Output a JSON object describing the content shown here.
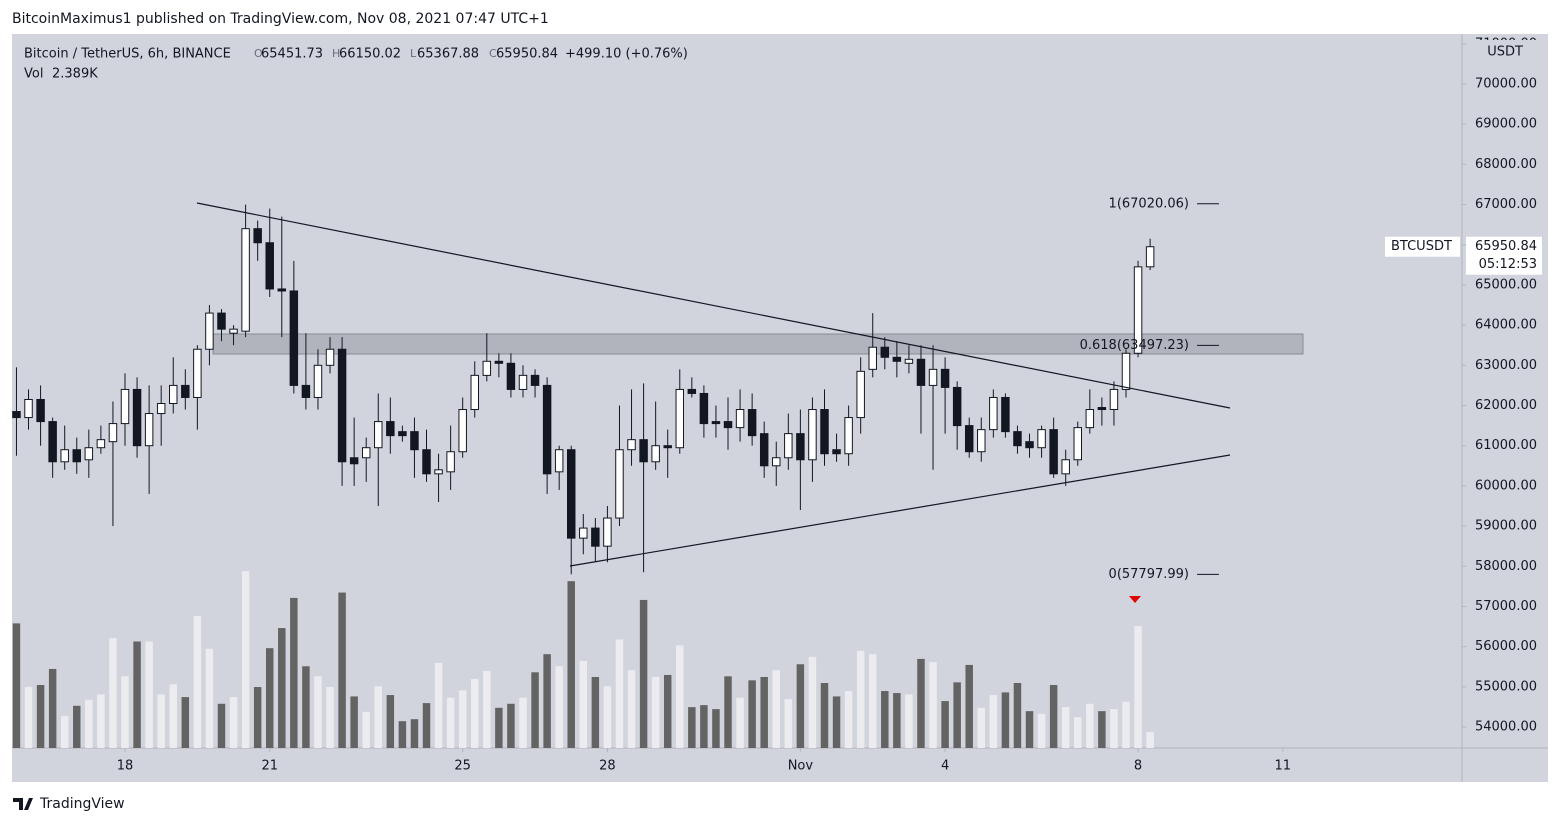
{
  "header": {
    "publisher_line": "BitcoinMaximus1 published on TradingView.com, Nov 08, 2021 07:47 UTC+1"
  },
  "chart_data": {
    "type": "candlestick",
    "symbol": "Bitcoin / TetherUS, 6h, BINANCE",
    "ohlc_letters": [
      "O",
      "H",
      "L",
      "C"
    ],
    "change": "+499.10 (+0.76%)",
    "ticker": "BTCUSDT",
    "countdown": "05:12:53",
    "axis_unit": "USDT",
    "up_color": "#ffffff",
    "down_color": "#131722",
    "open": [
      61850,
      61700,
      62150,
      61600,
      60600,
      60900,
      60650,
      60950,
      61100,
      61550,
      62400,
      61000,
      61800,
      62050,
      62500,
      62200,
      63400,
      64300,
      63800,
      63850,
      66400,
      66050,
      64900,
      64850,
      62500,
      62200,
      63000,
      63400,
      60700,
      60700,
      60950,
      61600,
      61350,
      61350,
      60900,
      60300,
      60350,
      60850,
      61900,
      62750,
      63100,
      63050,
      62400,
      62750,
      62500,
      60350,
      60900,
      58700,
      58950,
      58500,
      59200,
      60900,
      61150,
      60600,
      61000,
      60950,
      62400,
      62300,
      61600,
      61600,
      61450,
      61900,
      61300,
      60500,
      60700,
      61300,
      60650,
      61900,
      60900,
      60800,
      61700,
      62900,
      63450,
      63200,
      63050,
      63150,
      62500,
      62900,
      62450,
      61500,
      60850,
      61400,
      62200,
      61350,
      61100,
      60950,
      61400,
      60300,
      60650,
      61450,
      61950,
      61900,
      62400,
      63300,
      65451.73
    ],
    "high": [
      62950,
      62400,
      62500,
      61700,
      61500,
      61200,
      61400,
      61500,
      62100,
      62800,
      62700,
      62500,
      62500,
      63200,
      62900,
      63500,
      64500,
      64400,
      64000,
      67000,
      66600,
      66900,
      66700,
      65600,
      63800,
      63400,
      63700,
      63700,
      61700,
      61200,
      62300,
      62200,
      61500,
      61700,
      61400,
      60800,
      61500,
      62200,
      63100,
      63800,
      63300,
      63300,
      63000,
      62900,
      62700,
      61000,
      61000,
      59300,
      59200,
      59500,
      62000,
      62400,
      62550,
      62100,
      61400,
      62900,
      62700,
      62500,
      62000,
      62200,
      62400,
      62300,
      61600,
      61100,
      61800,
      61900,
      62200,
      62400,
      61300,
      62000,
      63200,
      64300,
      63700,
      63600,
      63500,
      63500,
      63500,
      63200,
      62600,
      61700,
      61700,
      62400,
      62300,
      61500,
      61300,
      61500,
      61700,
      60900,
      61600,
      62400,
      62200,
      62600,
      63400,
      65600,
      66150.02
    ],
    "low": [
      60750,
      61400,
      61000,
      60200,
      60400,
      60300,
      60200,
      60800,
      59000,
      61000,
      60700,
      59800,
      61000,
      61800,
      61900,
      61400,
      63000,
      63600,
      63500,
      63700,
      65600,
      64700,
      63700,
      62300,
      61900,
      61900,
      62800,
      60000,
      60000,
      60100,
      59500,
      60800,
      61100,
      60200,
      60100,
      59600,
      59900,
      60700,
      61700,
      62600,
      62700,
      62200,
      62200,
      62200,
      59800,
      59900,
      57800,
      58300,
      58100,
      58100,
      59000,
      60500,
      57850,
      60400,
      60200,
      60800,
      62200,
      61200,
      61200,
      60900,
      61100,
      61000,
      60200,
      60000,
      60400,
      59400,
      60100,
      60500,
      60600,
      60500,
      61300,
      62700,
      62900,
      62700,
      62800,
      61300,
      60400,
      61300,
      60900,
      60700,
      60600,
      61200,
      61200,
      60800,
      60700,
      60700,
      60200,
      60000,
      60500,
      61300,
      61500,
      61500,
      62200,
      63200,
      65367.88
    ],
    "close": [
      61700,
      62150,
      61600,
      60600,
      60900,
      60600,
      60950,
      61150,
      61550,
      62400,
      61000,
      61800,
      62050,
      62500,
      62200,
      63400,
      64300,
      63900,
      63900,
      66400,
      66050,
      64900,
      64850,
      62500,
      62200,
      63000,
      63400,
      60600,
      60550,
      60950,
      61600,
      61250,
      61250,
      60900,
      60300,
      60400,
      60850,
      61900,
      62750,
      63100,
      63050,
      62400,
      62750,
      62500,
      60300,
      60900,
      58700,
      58950,
      58500,
      59200,
      60900,
      61150,
      60600,
      61000,
      60950,
      62400,
      62300,
      61550,
      61550,
      61450,
      61900,
      61250,
      60500,
      60700,
      61300,
      60650,
      61900,
      60800,
      60800,
      61700,
      62850,
      63450,
      63200,
      63100,
      63150,
      62500,
      62900,
      62450,
      61500,
      60850,
      61400,
      62200,
      61350,
      61000,
      60950,
      61400,
      60300,
      60650,
      61450,
      61900,
      61900,
      62400,
      63300,
      65450,
      65950.84
    ],
    "volume": {
      "name": "Vol",
      "current_label": "2.389K",
      "up_color": "#ececf0",
      "down_color": "#636363",
      "values": [
        18.6,
        9.1,
        9.4,
        11.8,
        4.8,
        6.3,
        7.2,
        8.0,
        16.4,
        10.7,
        15.9,
        15.9,
        8.0,
        9.5,
        7.6,
        19.7,
        14.8,
        6.6,
        7.6,
        26.4,
        9.1,
        14.9,
        17.9,
        22.4,
        12.2,
        10.7,
        9.1,
        23.2,
        7.7,
        5.4,
        9.2,
        7.9,
        4.0,
        4.3,
        6.7,
        12.7,
        7.5,
        8.6,
        10.3,
        11.5,
        6.0,
        6.6,
        7.5,
        11.3,
        14.0,
        12.2,
        24.9,
        13.0,
        10.6,
        9.2,
        16.2,
        11.6,
        22.1,
        10.6,
        10.9,
        15.3,
        6.1,
        6.4,
        5.8,
        10.7,
        7.5,
        10.1,
        10.6,
        11.6,
        7.3,
        12.5,
        13.6,
        9.7,
        7.7,
        8.5,
        14.5,
        14.0,
        8.5,
        8.2,
        8.0,
        13.3,
        12.8,
        7.0,
        9.8,
        12.4,
        6.0,
        7.9,
        8.3,
        9.7,
        5.5,
        5.1,
        9.4,
        6.1,
        4.6,
        6.6,
        5.5,
        5.8,
        6.9,
        18.2,
        2.389
      ]
    },
    "ylim": [
      53478,
      71244
    ],
    "yticks": [
      {
        "value": 54000,
        "label": "54000.00"
      },
      {
        "value": 55000,
        "label": "55000.00"
      },
      {
        "value": 56000,
        "label": "56000.00"
      },
      {
        "value": 57000,
        "label": "57000.00"
      },
      {
        "value": 58000,
        "label": "58000.00"
      },
      {
        "value": 59000,
        "label": "59000.00"
      },
      {
        "value": 60000,
        "label": "60000.00"
      },
      {
        "value": 61000,
        "label": "61000.00"
      },
      {
        "value": 62000,
        "label": "62000.00"
      },
      {
        "value": 63000,
        "label": "63000.00"
      },
      {
        "value": 64000,
        "label": "64000.00"
      },
      {
        "value": 65000,
        "label": "65000.00"
      },
      {
        "value": 66000,
        "label": "66000.00"
      },
      {
        "value": 67000,
        "label": "67000.00"
      },
      {
        "value": 68000,
        "label": "68000.00"
      },
      {
        "value": 69000,
        "label": "69000.00"
      },
      {
        "value": 70000,
        "label": "70000.00"
      },
      {
        "value": 71000,
        "label": "71000.00"
      }
    ],
    "xlim": [
      -0.37,
      119.86
    ],
    "xticks": [
      {
        "value": 9,
        "label": "18"
      },
      {
        "value": 21,
        "label": "21"
      },
      {
        "value": 37,
        "label": "25"
      },
      {
        "value": 49,
        "label": "28"
      },
      {
        "value": 65,
        "label": "Nov"
      },
      {
        "value": 77,
        "label": "4"
      },
      {
        "value": 93,
        "label": "8"
      },
      {
        "value": 105,
        "label": "11"
      }
    ],
    "fib_levels": {
      "values": [
        67020.06,
        63497.23,
        57797.99
      ],
      "value_labels": [
        "1(67020.06)",
        "0.618(63497.23)",
        "0(57797.99)"
      ]
    }
  },
  "footer": {
    "brand": "TradingView"
  }
}
